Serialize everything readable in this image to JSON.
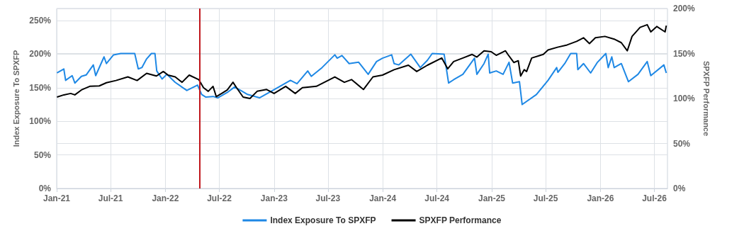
{
  "chart_data": {
    "type": "line",
    "ylabel": "Index Exposure To SPXFP",
    "y2label": "SPXFP Performance",
    "xlim": [
      "2021-01-01",
      "2026-08-14"
    ],
    "xticks": [
      {
        "value": "2021-01",
        "label": "Jan-21"
      },
      {
        "value": "2021-07",
        "label": "Jul-21"
      },
      {
        "value": "2022-01",
        "label": "Jan-22"
      },
      {
        "value": "2022-07",
        "label": "Jul-22"
      },
      {
        "value": "2023-01",
        "label": "Jan-23"
      },
      {
        "value": "2023-07",
        "label": "Jul-23"
      },
      {
        "value": "2024-01",
        "label": "Jan-24"
      },
      {
        "value": "2024-07",
        "label": "Jul-24"
      },
      {
        "value": "2025-01",
        "label": "Jan-25"
      },
      {
        "value": "2025-07",
        "label": "Jul-25"
      },
      {
        "value": "2026-01",
        "label": "Jan-26"
      },
      {
        "value": "2026-07",
        "label": "Jul-26"
      }
    ],
    "ylim": [
      0,
      268
    ],
    "yticks": [
      {
        "value": 0,
        "label": "0%"
      },
      {
        "value": 50,
        "label": "50%"
      },
      {
        "value": 100,
        "label": "100%"
      },
      {
        "value": 150,
        "label": "150%"
      },
      {
        "value": 200,
        "label": "200%"
      },
      {
        "value": 250,
        "label": "250%"
      }
    ],
    "y2lim": [
      0,
      200
    ],
    "y2ticks": [
      {
        "value": 0,
        "label": "0%"
      },
      {
        "value": 50,
        "label": "50%"
      },
      {
        "value": 100,
        "label": "100%"
      },
      {
        "value": 150,
        "label": "150%"
      },
      {
        "value": 200,
        "label": "200%"
      }
    ],
    "grid": true,
    "legend": "bottom",
    "marker": "none",
    "line_style": "solid",
    "ref_lines": [
      {
        "axis": "x",
        "value": "2022-04-25",
        "label": null,
        "color": "#c0171d"
      }
    ],
    "series": [
      {
        "name": "Index Exposure To SPXFP",
        "color": "#1e88e5",
        "axis": "y",
        "x": [
          "2021-01-02",
          "2021-01-25",
          "2021-01-31",
          "2021-02-22",
          "2021-03-03",
          "2021-03-25",
          "2021-04-10",
          "2021-05-04",
          "2021-05-12",
          "2021-06-09",
          "2021-06-17",
          "2021-07-11",
          "2021-08-04",
          "2021-09-20",
          "2021-10-02",
          "2021-10-14",
          "2021-10-30",
          "2021-11-15",
          "2021-11-27",
          "2021-12-03",
          "2021-12-21",
          "2022-01-06",
          "2022-02-03",
          "2022-03-14",
          "2022-04-19",
          "2022-05-03",
          "2022-05-17",
          "2022-06-10",
          "2022-06-26",
          "2022-07-28",
          "2022-08-21",
          "2022-09-11",
          "2022-10-04",
          "2022-11-13",
          "2023-01-08",
          "2023-02-25",
          "2023-03-19",
          "2023-04-24",
          "2023-05-06",
          "2023-06-11",
          "2023-07-24",
          "2023-08-01",
          "2023-08-17",
          "2023-09-10",
          "2023-10-12",
          "2023-11-13",
          "2023-12-11",
          "2023-12-31",
          "2024-01-31",
          "2024-02-08",
          "2024-02-24",
          "2024-04-04",
          "2024-05-06",
          "2024-05-30",
          "2024-06-15",
          "2024-07-25",
          "2024-08-09",
          "2024-08-26",
          "2024-09-26",
          "2024-11-04",
          "2024-11-12",
          "2024-12-06",
          "2024-12-20",
          "2024-12-25",
          "2025-01-16",
          "2025-02-08",
          "2025-02-28",
          "2025-03-12",
          "2025-04-04",
          "2025-04-13",
          "2025-05-31",
          "2025-07-09",
          "2025-08-07",
          "2025-08-11",
          "2025-09-03",
          "2025-09-23",
          "2025-10-13",
          "2025-10-17",
          "2025-11-05",
          "2025-11-29",
          "2025-12-22",
          "2026-01-19",
          "2026-01-27",
          "2026-02-08",
          "2026-02-16",
          "2026-03-12",
          "2026-04-05",
          "2026-05-07",
          "2026-06-07",
          "2026-06-19",
          "2026-08-02",
          "2026-08-10"
        ],
        "values": [
          172,
          178,
          161,
          168,
          157,
          167,
          169,
          184,
          168,
          196,
          186,
          199,
          201,
          201,
          178,
          180,
          193,
          201,
          201,
          175,
          163,
          170,
          158,
          146,
          154,
          140,
          136,
          137,
          135,
          143,
          151,
          146,
          140,
          135,
          149,
          161,
          156,
          175,
          167,
          180,
          199,
          194,
          198,
          186,
          188,
          170,
          189,
          194,
          199,
          186,
          184,
          200,
          180,
          191,
          201,
          200,
          157,
          162,
          170,
          194,
          170,
          186,
          200,
          172,
          175,
          170,
          188,
          157,
          159,
          125,
          140,
          161,
          180,
          173,
          186,
          201,
          201,
          177,
          186,
          172,
          188,
          201,
          180,
          196,
          180,
          186,
          159,
          170,
          189,
          168,
          184,
          172
        ]
      },
      {
        "name": "SPXFP Performance",
        "color": "#000000",
        "axis": "y2",
        "x": [
          "2021-01-02",
          "2021-01-25",
          "2021-02-17",
          "2021-03-03",
          "2021-03-25",
          "2021-04-22",
          "2021-05-24",
          "2021-06-17",
          "2021-07-19",
          "2021-08-28",
          "2021-09-28",
          "2021-10-30",
          "2021-12-02",
          "2021-12-25",
          "2022-01-10",
          "2022-02-03",
          "2022-02-26",
          "2022-03-22",
          "2022-04-23",
          "2022-05-09",
          "2022-05-25",
          "2022-06-10",
          "2022-06-21",
          "2022-07-11",
          "2022-07-28",
          "2022-08-16",
          "2022-08-28",
          "2022-09-19",
          "2022-10-12",
          "2022-11-05",
          "2022-12-07",
          "2023-01-01",
          "2023-02-09",
          "2023-03-13",
          "2023-04-06",
          "2023-05-23",
          "2023-07-24",
          "2023-08-25",
          "2023-09-18",
          "2023-10-28",
          "2023-11-29",
          "2023-12-31",
          "2024-02-08",
          "2024-03-27",
          "2024-04-24",
          "2024-05-30",
          "2024-07-17",
          "2024-08-06",
          "2024-08-26",
          "2024-09-26",
          "2024-10-27",
          "2024-11-12",
          "2024-12-06",
          "2024-12-30",
          "2025-01-16",
          "2025-02-16",
          "2025-02-24",
          "2025-03-16",
          "2025-03-31",
          "2025-04-08",
          "2025-04-20",
          "2025-04-28",
          "2025-05-15",
          "2025-06-23",
          "2025-07-09",
          "2025-08-10",
          "2025-09-11",
          "2025-10-13",
          "2025-11-05",
          "2025-11-25",
          "2025-12-15",
          "2026-01-16",
          "2026-02-16",
          "2026-03-12",
          "2026-04-01",
          "2026-04-17",
          "2026-05-14",
          "2026-06-07",
          "2026-06-19",
          "2026-07-09",
          "2026-08-06",
          "2026-08-10"
        ],
        "values": [
          101.6,
          104,
          105.6,
          104,
          109.5,
          113.5,
          114,
          117.5,
          120,
          124,
          120,
          128,
          125,
          130,
          126,
          124,
          118,
          126,
          121,
          112,
          108,
          113.5,
          102,
          106,
          109.5,
          118,
          112,
          101.6,
          100,
          108,
          110,
          105.6,
          113.5,
          105.6,
          112,
          113.5,
          124,
          118,
          121,
          110,
          124,
          126,
          132,
          137,
          130,
          137,
          145,
          133,
          141,
          145,
          149,
          146,
          153,
          152,
          148,
          153,
          149,
          140,
          142,
          125,
          132,
          130,
          145,
          149,
          154,
          157,
          159.5,
          163.5,
          167.5,
          161,
          167.5,
          169,
          166,
          162,
          153,
          169,
          179,
          182,
          174,
          180,
          174,
          181
        ]
      }
    ]
  }
}
